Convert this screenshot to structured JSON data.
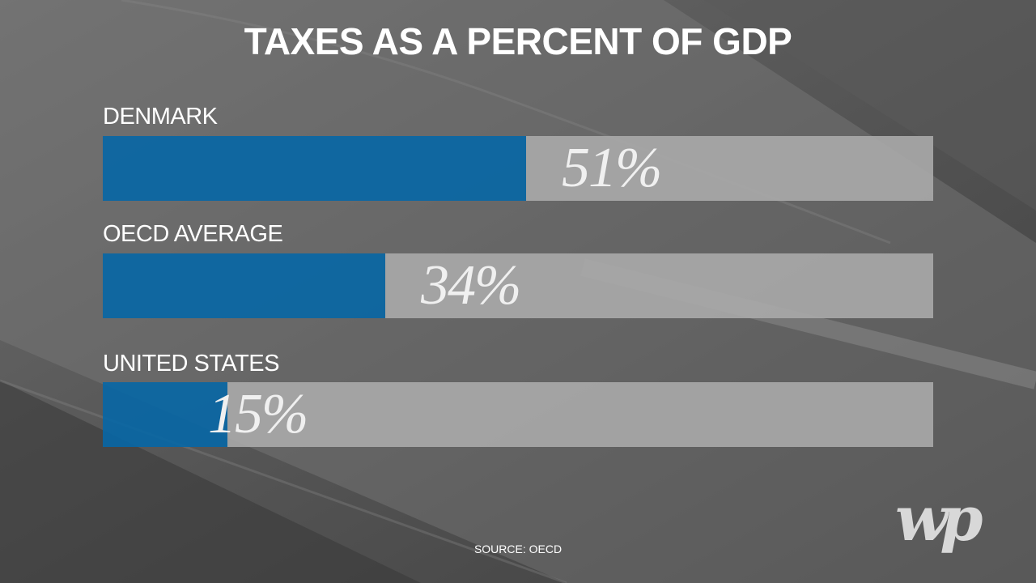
{
  "chart_data": {
    "type": "bar",
    "orientation": "horizontal",
    "title": "TAXES AS A PERCENT OF GDP",
    "categories": [
      "DENMARK",
      "OECD AVERAGE",
      "UNITED STATES"
    ],
    "values": [
      51,
      34,
      15
    ],
    "value_labels": [
      "51%",
      "34%",
      "15%"
    ],
    "xlim": [
      0,
      100
    ],
    "grid": false,
    "legend": "none",
    "source": "SOURCE: OECD"
  },
  "colors": {
    "bar_fill": "#0767a6",
    "bar_track": "#aaaaaa",
    "text": "#ffffff"
  },
  "logo": {
    "text": "wp",
    "icon": "washington-post-logo-icon"
  }
}
